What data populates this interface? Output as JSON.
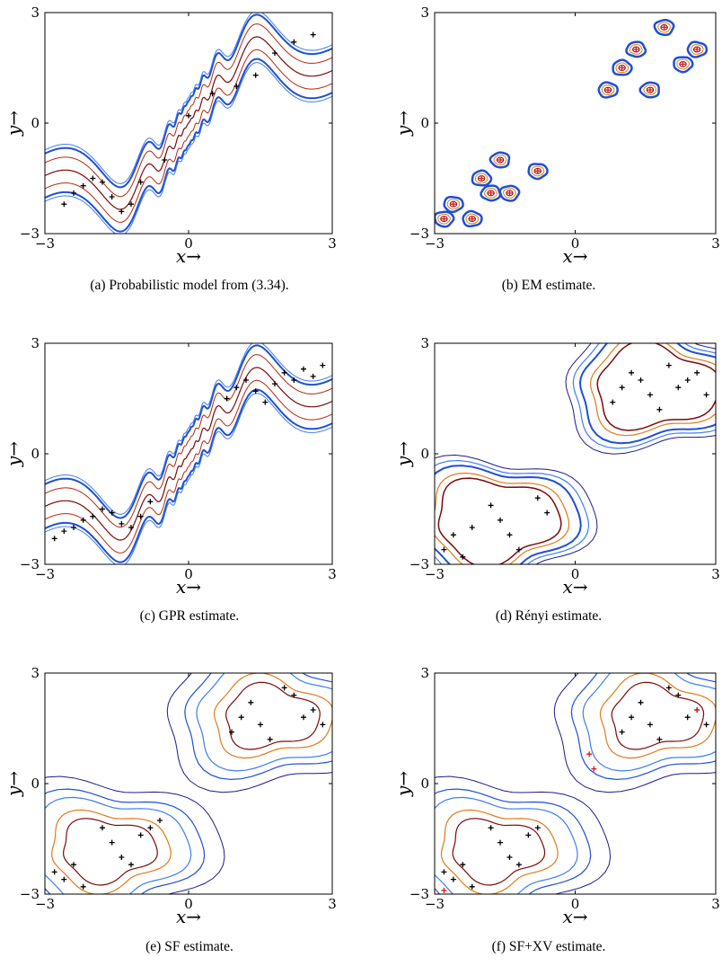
{
  "colors": {
    "contour_dark_red": "#7a0a0a",
    "contour_red": "#b5280c",
    "contour_orange": "#e07a1a",
    "contour_blue": "#1f4fd6",
    "contour_light_blue": "#3f7df0",
    "contour_navy": "#1a1a8c",
    "sample_black": "#000000",
    "sample_red": "#e01010"
  },
  "chart_data": [
    {
      "id": "a",
      "type": "scatter",
      "caption": "(a) Probabilistic model from (3.34).",
      "xlabel": "x→",
      "ylabel": "y→",
      "xlim": [
        -3,
        3
      ],
      "ylim": [
        -3,
        3
      ],
      "xticks": [
        -3,
        0,
        3
      ],
      "yticks": [
        -3,
        0,
        3
      ],
      "contour_style": "band",
      "series": [
        {
          "x": [
            -2.6,
            -2.4,
            -2.2,
            -2.0,
            -1.8,
            -1.6,
            -1.4,
            -1.2,
            -1.0,
            -0.5,
            0.0,
            0.5,
            1.0,
            1.4,
            1.8,
            2.2,
            2.6
          ],
          "y": [
            -2.2,
            -1.9,
            -1.7,
            -1.5,
            -1.6,
            -2.0,
            -2.4,
            -2.2,
            -1.6,
            -1.0,
            0.2,
            0.8,
            1.0,
            1.3,
            1.9,
            2.2,
            2.4
          ]
        }
      ]
    },
    {
      "id": "b",
      "type": "scatter",
      "caption": "(b) EM estimate.",
      "xlabel": "x→",
      "ylabel": "y→",
      "xlim": [
        -3,
        3
      ],
      "ylim": [
        -3,
        3
      ],
      "xticks": [
        -3,
        0,
        3
      ],
      "yticks": [
        -3,
        0,
        3
      ],
      "contour_style": "circles",
      "centers": {
        "x": [
          -2.8,
          -2.6,
          -2.2,
          -2.0,
          -1.8,
          -1.6,
          -1.4,
          -0.8,
          0.7,
          1.0,
          1.3,
          1.6,
          1.9,
          2.3,
          2.6
        ],
        "y": [
          -2.6,
          -2.2,
          -2.6,
          -1.5,
          -1.9,
          -1.0,
          -1.9,
          -1.3,
          0.9,
          1.5,
          2.0,
          0.9,
          2.6,
          1.6,
          2.0
        ]
      }
    },
    {
      "id": "c",
      "type": "scatter",
      "caption": "(c) GPR estimate.",
      "xlabel": "x→",
      "ylabel": "y→",
      "xlim": [
        -3,
        3
      ],
      "ylim": [
        -3,
        3
      ],
      "xticks": [
        -3,
        0,
        3
      ],
      "yticks": [
        -3,
        0,
        3
      ],
      "contour_style": "gpr",
      "series": [
        {
          "x": [
            -2.8,
            -2.6,
            -2.4,
            -2.2,
            -2.0,
            -1.8,
            -1.6,
            -1.4,
            -1.2,
            -1.0,
            -0.8,
            0.8,
            1.0,
            1.2,
            1.4,
            1.6,
            1.8,
            2.0,
            2.2,
            2.4,
            2.6,
            2.8
          ],
          "y": [
            -2.3,
            -2.1,
            -2.0,
            -1.8,
            -1.7,
            -1.5,
            -1.6,
            -1.9,
            -2.0,
            -1.7,
            -1.3,
            1.5,
            1.8,
            2.0,
            1.7,
            1.4,
            1.9,
            2.2,
            2.0,
            2.3,
            2.1,
            2.4
          ]
        }
      ]
    },
    {
      "id": "d",
      "type": "scatter",
      "caption": "(d) Rényi estimate.",
      "xlabel": "x→",
      "ylabel": "y→",
      "xlim": [
        -3,
        3
      ],
      "ylim": [
        -3,
        3
      ],
      "xticks": [
        -3,
        0,
        3
      ],
      "yticks": [
        -3,
        0,
        3
      ],
      "contour_style": "blobs",
      "series": [
        {
          "x": [
            -2.8,
            -2.6,
            -2.4,
            -2.2,
            -1.8,
            -1.6,
            -1.4,
            -1.2,
            -0.8,
            -0.6,
            0.8,
            1.0,
            1.2,
            1.4,
            1.6,
            1.8,
            2.0,
            2.2,
            2.4,
            2.6,
            2.8
          ],
          "y": [
            -2.6,
            -2.2,
            -2.8,
            -2.0,
            -1.4,
            -1.8,
            -2.2,
            -2.6,
            -1.2,
            -1.6,
            1.4,
            1.8,
            2.2,
            2.0,
            1.6,
            1.2,
            2.4,
            1.8,
            2.0,
            2.2,
            1.6
          ]
        }
      ]
    },
    {
      "id": "e",
      "type": "scatter",
      "caption": "(e) SF estimate.",
      "xlabel": "x→",
      "ylabel": "y→",
      "xlim": [
        -3,
        3
      ],
      "ylim": [
        -3,
        3
      ],
      "xticks": [
        -3,
        0,
        3
      ],
      "yticks": [
        -3,
        0,
        3
      ],
      "contour_style": "sf",
      "series": [
        {
          "x": [
            -2.8,
            -2.6,
            -2.4,
            -2.2,
            -1.8,
            -1.6,
            -1.4,
            -1.2,
            -1.0,
            -0.8,
            -0.6,
            0.9,
            1.1,
            1.3,
            1.5,
            1.7,
            2.0,
            2.2,
            2.4,
            2.6,
            2.8
          ],
          "y": [
            -2.4,
            -2.6,
            -2.2,
            -2.8,
            -1.2,
            -1.6,
            -2.0,
            -2.2,
            -1.4,
            -1.2,
            -1.0,
            1.4,
            1.8,
            2.2,
            1.6,
            1.2,
            2.6,
            2.4,
            1.8,
            2.0,
            1.6
          ]
        }
      ]
    },
    {
      "id": "f",
      "type": "scatter",
      "caption": "(f) SF+XV estimate.",
      "xlabel": "x→",
      "ylabel": "y→",
      "xlim": [
        -3,
        3
      ],
      "ylim": [
        -3,
        3
      ],
      "xticks": [
        -3,
        0,
        3
      ],
      "yticks": [
        -3,
        0,
        3
      ],
      "contour_style": "sfxv",
      "series": [
        {
          "x": [
            -2.8,
            -2.6,
            -2.4,
            -2.2,
            -1.8,
            -1.6,
            -1.4,
            -1.2,
            -1.0,
            -0.8,
            1.0,
            1.2,
            1.4,
            1.6,
            1.8,
            2.0,
            2.2,
            2.4,
            2.6,
            2.8
          ],
          "y": [
            -2.4,
            -2.6,
            -2.2,
            -2.8,
            -1.2,
            -1.6,
            -2.0,
            -2.2,
            -1.4,
            -1.2,
            1.4,
            1.8,
            2.2,
            1.6,
            1.2,
            2.6,
            2.4,
            1.8,
            2.0,
            1.6
          ]
        },
        {
          "name": "",
          "x": [
            -2.8,
            0.3,
            0.4,
            2.6
          ],
          "y": [
            -2.9,
            0.8,
            0.4,
            2.0
          ]
        }
      ]
    }
  ]
}
